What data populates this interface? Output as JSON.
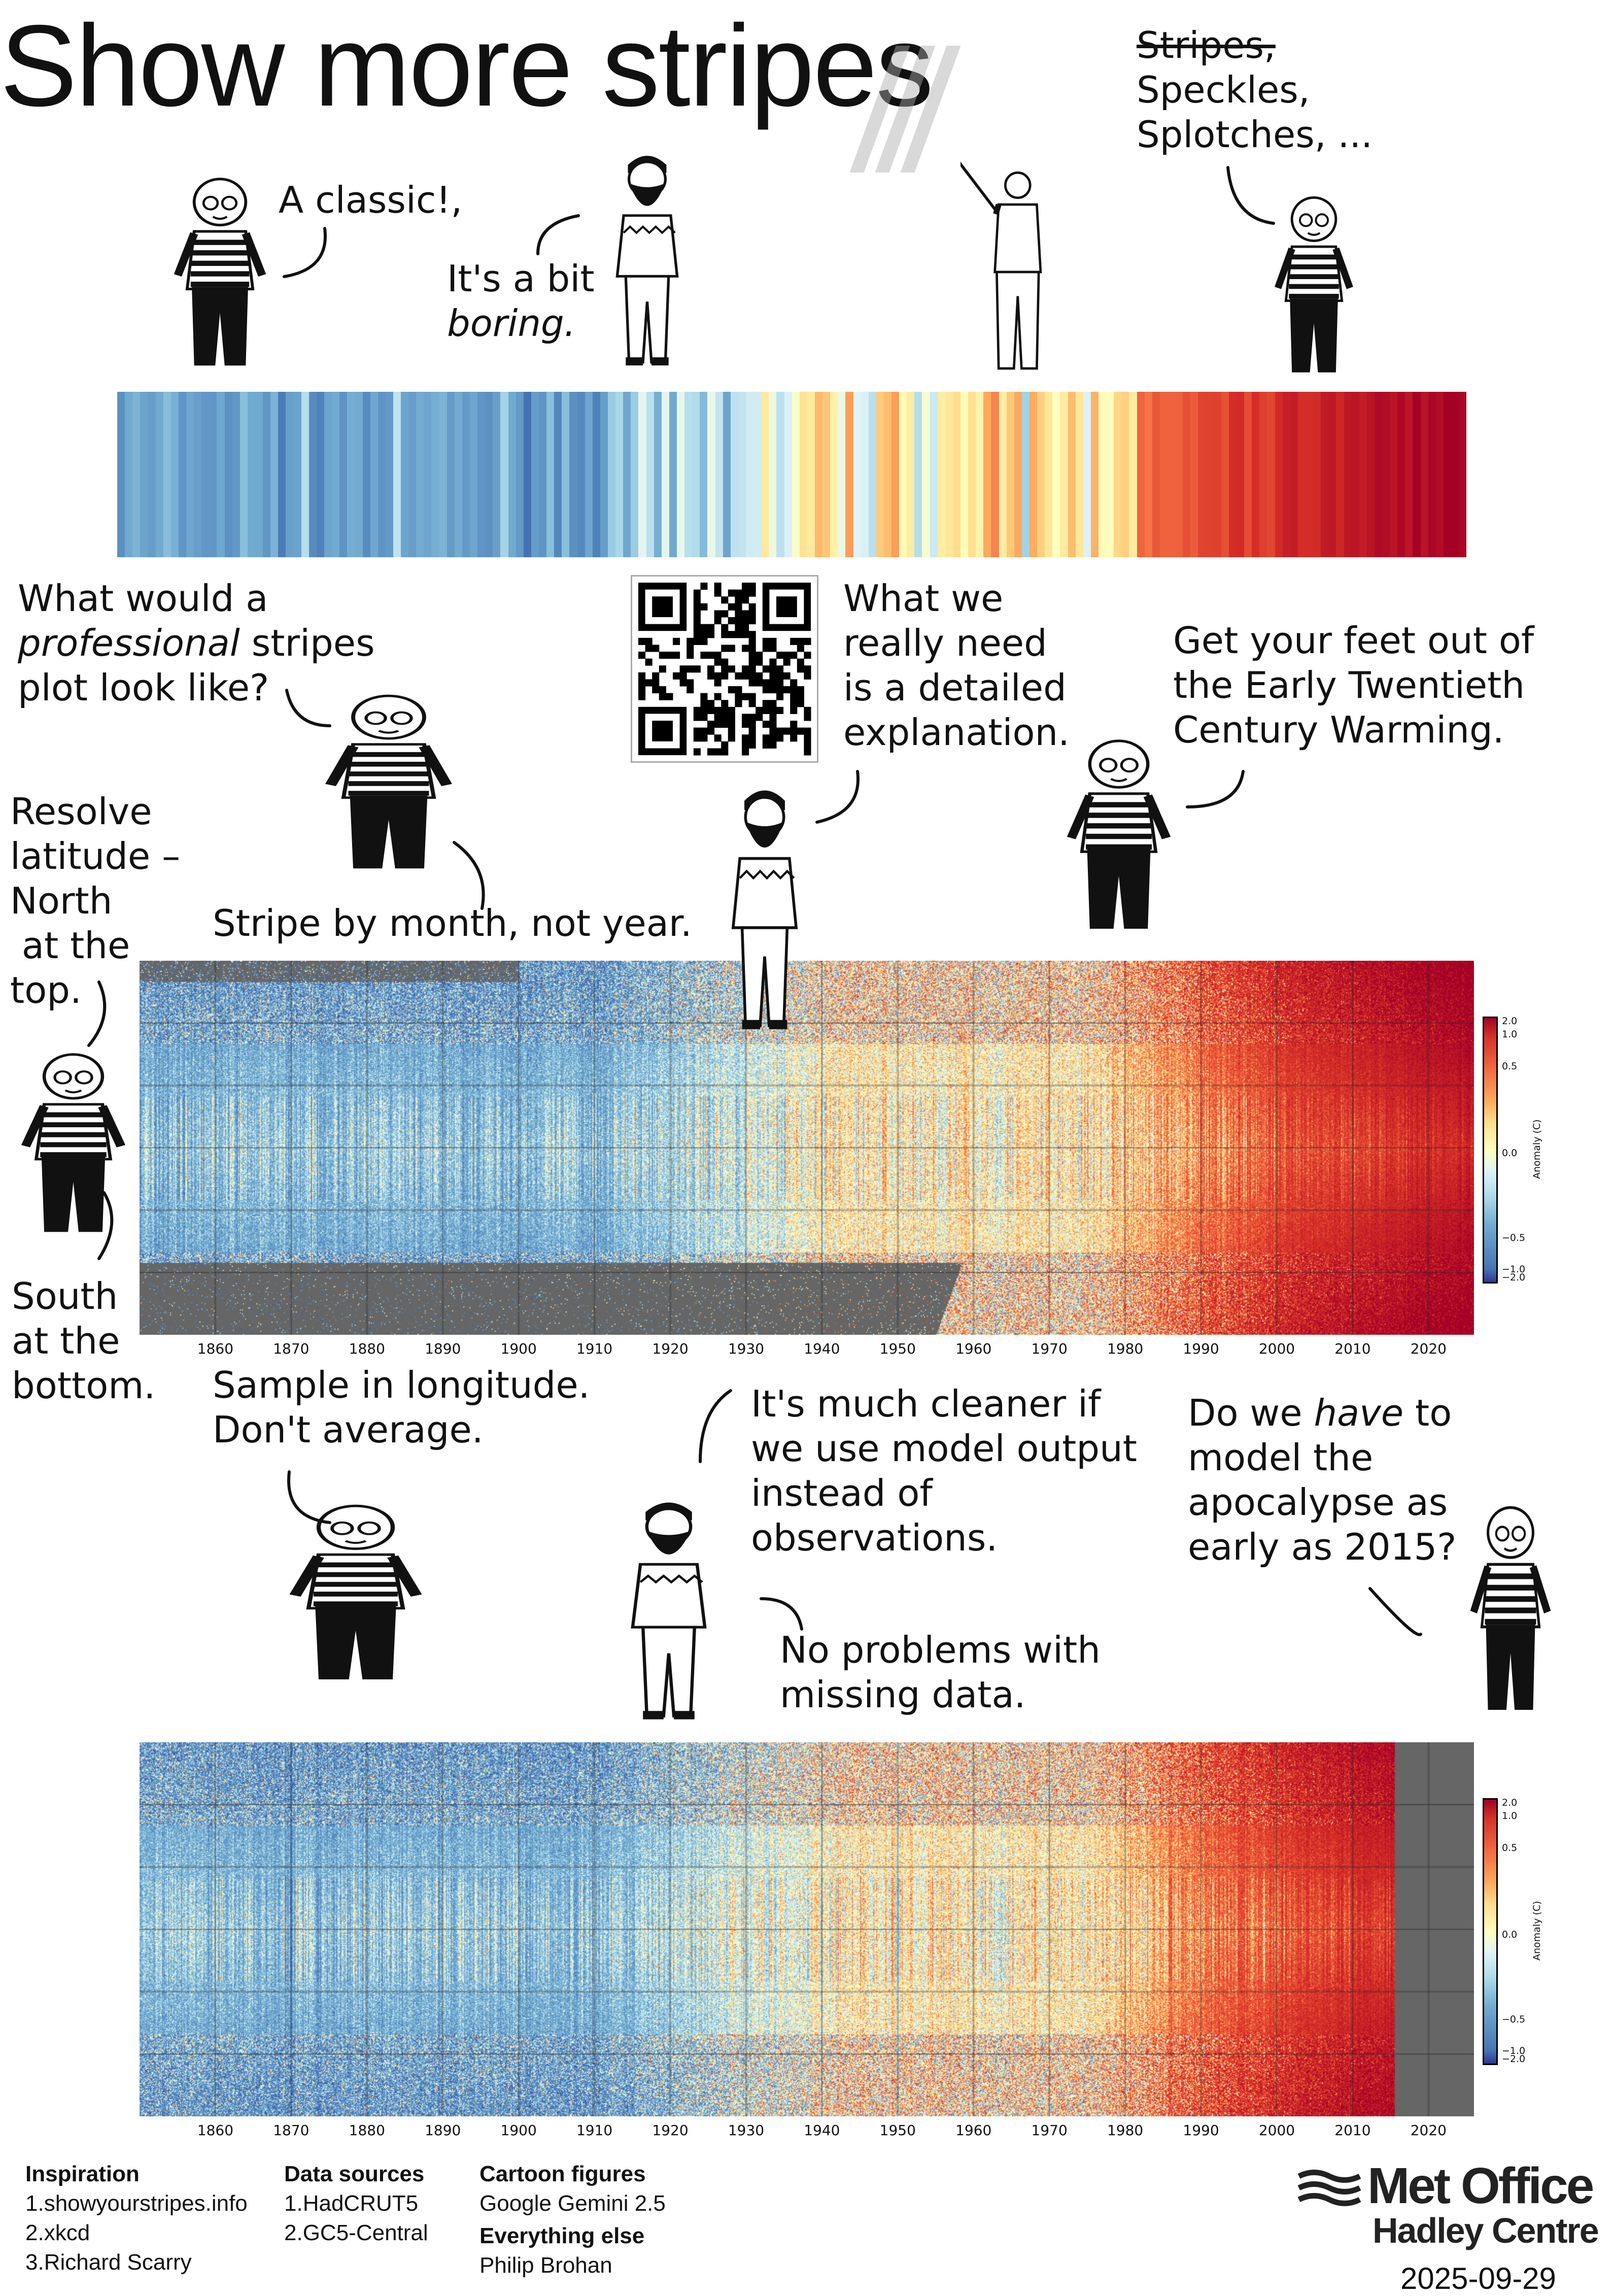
{
  "title": "Show more stripes",
  "quotes": {
    "stripes_struck": "Stripes,",
    "speckles": "Speckles,",
    "splotches": "Splotches, ...",
    "classic": "A classic!,",
    "boring_1": "It's a bit",
    "boring_2": "boring.",
    "professional_1": "What would a",
    "professional_2a": "professional",
    "professional_2b": " stripes",
    "professional_3": "plot look like?",
    "explanation": [
      "What we",
      "really need",
      "is a detailed",
      "explanation."
    ],
    "feet": [
      "Get your feet out of",
      "the Early Twentieth",
      "Century Warming."
    ],
    "resolve": [
      "Resolve",
      "latitude –",
      "North",
      " at the",
      "top."
    ],
    "by_month": "Stripe by month, not year.",
    "south": [
      "South",
      "at the",
      "bottom."
    ],
    "sample": [
      "Sample in longitude.",
      "Don't average."
    ],
    "cleaner": [
      "It's much cleaner if",
      "we use model output",
      "instead of",
      "observations."
    ],
    "apocalypse_1": "Do we ",
    "apocalypse_1i": "have",
    "apocalypse_1b": " to",
    "apocalypse": [
      "model the",
      "apocalypse as",
      "early as 2015?"
    ],
    "missing": [
      "No problems with",
      "missing data."
    ]
  },
  "chart_data": [
    {
      "type": "heatmap",
      "name": "warming stripes (annual global mean)",
      "x_range": [
        1850,
        2025
      ],
      "colormap": "RdBu_r",
      "colors": {
        "cold": "#08306b",
        "warm": "#67000d"
      }
    },
    {
      "type": "heatmap",
      "name": "HadCRUT5 monthly by latitude",
      "x_range": [
        1850,
        2026
      ],
      "y_range": [
        -90,
        90
      ],
      "x_ticks": [
        "1860",
        "1870",
        "1880",
        "1890",
        "1900",
        "1910",
        "1920",
        "1930",
        "1940",
        "1950",
        "1960",
        "1970",
        "1980",
        "1990",
        "2000",
        "2010",
        "2020"
      ],
      "colorbar": {
        "label": "Anomaly (C)",
        "ticks": [
          "2.0",
          "1.0",
          "0.5",
          "0.0",
          "−0.5",
          "−1.0",
          "−2.0"
        ]
      },
      "missing_color": "#666666"
    },
    {
      "type": "heatmap",
      "name": "GC5-Central model monthly by latitude",
      "x_range": [
        1850,
        2026
      ],
      "y_range": [
        -90,
        90
      ],
      "data_end_year": 2015,
      "x_ticks": [
        "1860",
        "1870",
        "1880",
        "1890",
        "1900",
        "1910",
        "1920",
        "1930",
        "1940",
        "1950",
        "1960",
        "1970",
        "1980",
        "1990",
        "2000",
        "2010",
        "2020"
      ],
      "colorbar": {
        "label": "Anomaly (C)",
        "ticks": [
          "2.0",
          "1.0",
          "0.5",
          "0.0",
          "−0.5",
          "−1.0",
          "−2.0"
        ]
      },
      "missing_color": "#666666"
    }
  ],
  "footer": {
    "inspiration_h": "Inspiration",
    "inspiration": [
      "1.showyourstripes.info",
      "2.xkcd",
      "3.Richard Scarry"
    ],
    "sources_h": "Data sources",
    "sources": [
      "1.HadCRUT5",
      "2.GC5-Central"
    ],
    "cartoon_h": "Cartoon figures",
    "cartoon": "Google Gemini 2.5",
    "else_h": "Everything else",
    "else": "Philip Brohan",
    "logo_1": "Met Office",
    "logo_2": "Hadley Centre",
    "date": "2025-09-29"
  }
}
